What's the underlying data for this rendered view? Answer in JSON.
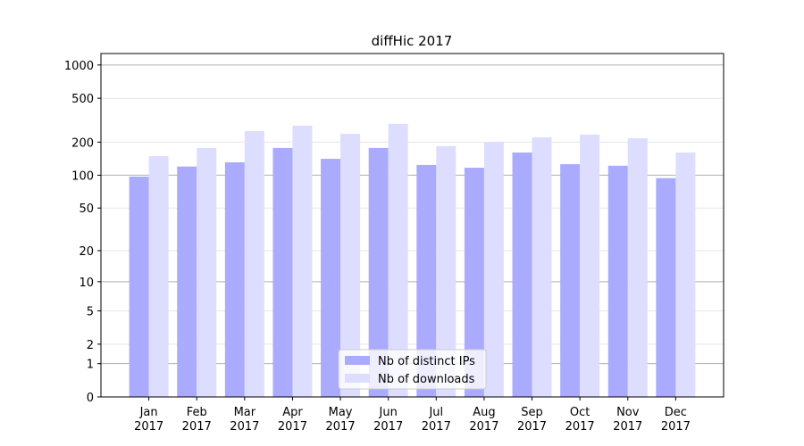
{
  "chart_data": {
    "type": "bar",
    "title": "diffHic 2017",
    "categories": [
      [
        "Jan",
        "2017"
      ],
      [
        "Feb",
        "2017"
      ],
      [
        "Mar",
        "2017"
      ],
      [
        "Apr",
        "2017"
      ],
      [
        "May",
        "2017"
      ],
      [
        "Jun",
        "2017"
      ],
      [
        "Jul",
        "2017"
      ],
      [
        "Aug",
        "2017"
      ],
      [
        "Sep",
        "2017"
      ],
      [
        "Oct",
        "2017"
      ],
      [
        "Nov",
        "2017"
      ],
      [
        "Dec",
        "2017"
      ]
    ],
    "series": [
      {
        "name": "Nb of distinct IPs",
        "color": "#aaaaff",
        "values": [
          97,
          120,
          131,
          177,
          141,
          177,
          124,
          117,
          161,
          126,
          122,
          94
        ]
      },
      {
        "name": "Nb of downloads",
        "color": "#ddddff",
        "values": [
          149,
          177,
          252,
          282,
          238,
          293,
          184,
          201,
          221,
          234,
          217,
          161
        ]
      }
    ],
    "yscale": "log1p",
    "ylim": [
      0,
      1270
    ],
    "yticks": [
      0,
      1,
      2,
      5,
      10,
      20,
      50,
      100,
      200,
      500,
      1000
    ],
    "grid": true,
    "legend": "lower center"
  }
}
